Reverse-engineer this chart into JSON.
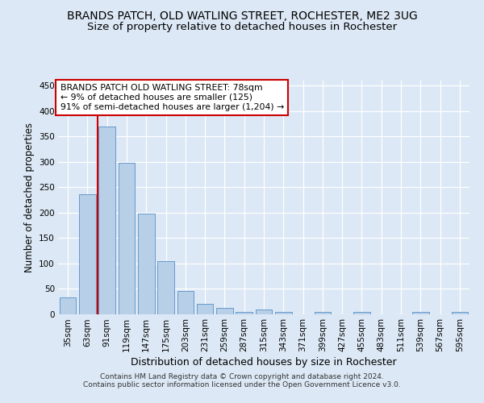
{
  "title": "BRANDS PATCH, OLD WATLING STREET, ROCHESTER, ME2 3UG",
  "subtitle": "Size of property relative to detached houses in Rochester",
  "xlabel": "Distribution of detached houses by size in Rochester",
  "ylabel": "Number of detached properties",
  "categories": [
    "35sqm",
    "63sqm",
    "91sqm",
    "119sqm",
    "147sqm",
    "175sqm",
    "203sqm",
    "231sqm",
    "259sqm",
    "287sqm",
    "315sqm",
    "343sqm",
    "371sqm",
    "399sqm",
    "427sqm",
    "455sqm",
    "483sqm",
    "511sqm",
    "539sqm",
    "567sqm",
    "595sqm"
  ],
  "all_bar_values": [
    34,
    236,
    370,
    299,
    199,
    104,
    46,
    20,
    13,
    5,
    10,
    5,
    0,
    4,
    0,
    5,
    0,
    0,
    4,
    0,
    4
  ],
  "bar_color": "#b8cfe8",
  "bar_edge_color": "#6699cc",
  "vline_color": "#cc0000",
  "vline_x": 1.5,
  "annotation_title": "BRANDS PATCH OLD WATLING STREET: 78sqm",
  "annotation_line1": "← 9% of detached houses are smaller (125)",
  "annotation_line2": "91% of semi-detached houses are larger (1,204) →",
  "annotation_box_color": "white",
  "annotation_box_edge": "#cc0000",
  "bg_color": "#dce8f5",
  "grid_color": "#ffffff",
  "footer1": "Contains HM Land Registry data © Crown copyright and database right 2024.",
  "footer2": "Contains public sector information licensed under the Open Government Licence v3.0.",
  "ylim": [
    0,
    460
  ],
  "title_fontsize": 10,
  "subtitle_fontsize": 9.5,
  "ylabel_fontsize": 8.5,
  "xlabel_fontsize": 9,
  "tick_fontsize": 7.5,
  "annotation_fontsize": 7.8,
  "footer_fontsize": 6.5
}
